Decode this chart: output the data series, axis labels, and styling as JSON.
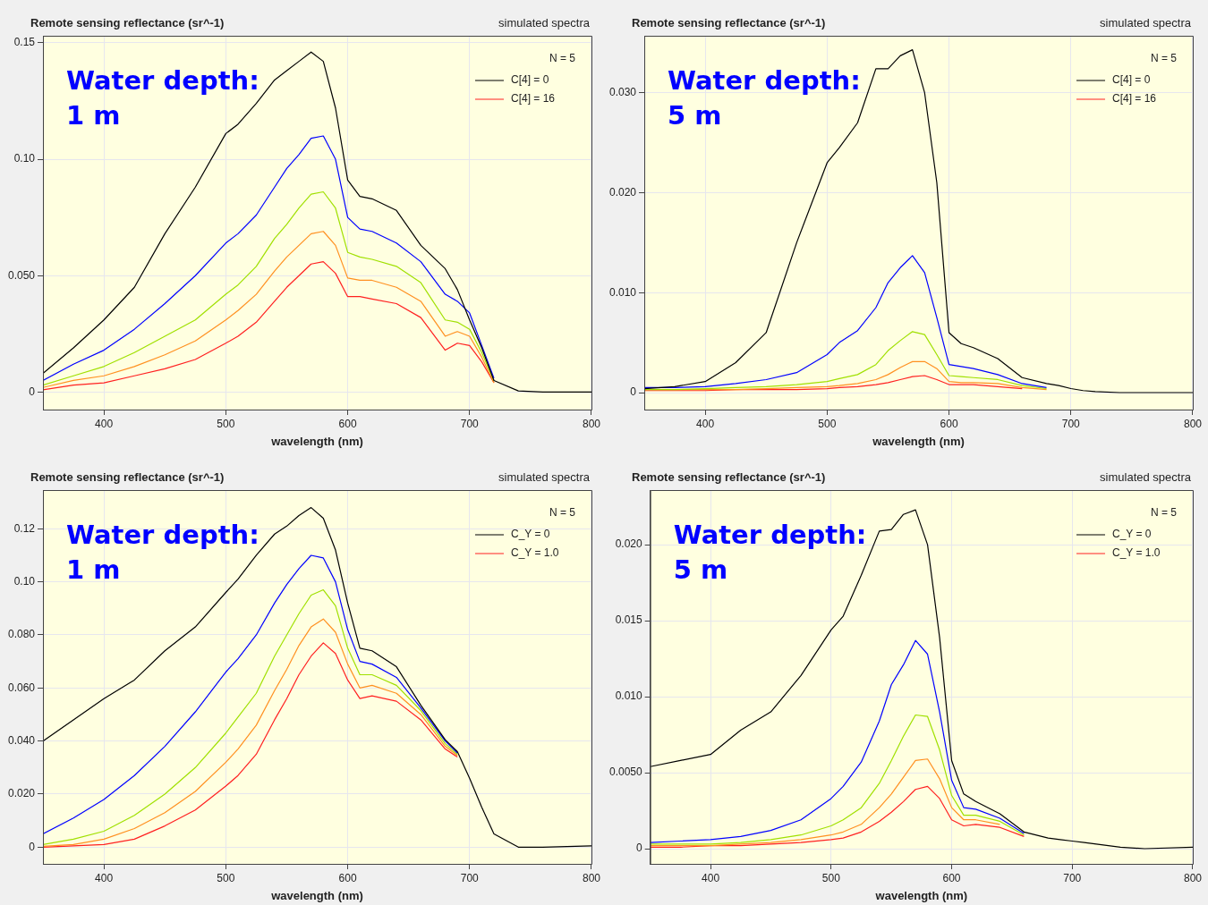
{
  "chart_data": [
    {
      "type": "line",
      "title": "Remote sensing reflectance (sr^-1)",
      "subtitle": "simulated spectra",
      "xlabel": "wavelength (nm)",
      "legend_title": "N = 5",
      "annotations": [
        "Water depth:",
        "1 m"
      ],
      "legend": "top right",
      "grid": true,
      "marker": "none",
      "line_style": "solid",
      "x": [
        350,
        375,
        400,
        425,
        450,
        475,
        500,
        510,
        525,
        540,
        550,
        560,
        570,
        580,
        590,
        600,
        610,
        620,
        640,
        660,
        680,
        690,
        700,
        710,
        720,
        740,
        760,
        800
      ],
      "xlim": [
        350,
        800
      ],
      "xticks": [
        400,
        500,
        600,
        700,
        800
      ],
      "ylim": [
        -0.0075,
        0.153
      ],
      "yticks": [
        0,
        {
          "value": 0.05,
          "label": "0.050"
        },
        {
          "value": 0.1,
          "label": "0.10"
        },
        0.15
      ],
      "series": [
        {
          "name": "C[4] = 0",
          "color": "#000000",
          "values": [
            0.008,
            0.019,
            0.031,
            0.045,
            0.068,
            0.088,
            0.111,
            0.115,
            0.124,
            0.134,
            0.138,
            0.142,
            0.146,
            0.142,
            0.122,
            0.091,
            0.084,
            0.083,
            0.078,
            0.063,
            0.053,
            0.044,
            0.031,
            0.019,
            0.005,
            0.0005,
            0,
            0
          ]
        },
        {
          "color": "#0000ff",
          "values": [
            0.005,
            0.012,
            0.018,
            0.027,
            0.038,
            0.05,
            0.064,
            0.068,
            0.076,
            0.088,
            0.096,
            0.102,
            0.109,
            0.11,
            0.1,
            0.075,
            0.07,
            0.069,
            0.064,
            0.056,
            0.042,
            0.039,
            0.034,
            0.02,
            0.006,
            null,
            null,
            null
          ]
        },
        {
          "color": "#a0e000",
          "values": [
            0.003,
            0.007,
            0.011,
            0.017,
            0.024,
            0.031,
            0.042,
            0.046,
            0.054,
            0.066,
            0.072,
            0.079,
            0.085,
            0.086,
            0.079,
            0.06,
            0.058,
            0.057,
            0.054,
            0.047,
            0.031,
            0.03,
            0.027,
            0.017,
            0.005,
            null,
            null,
            null
          ]
        },
        {
          "color": "#ff9020",
          "values": [
            0.002,
            0.005,
            0.007,
            0.011,
            0.016,
            0.022,
            0.031,
            0.035,
            0.042,
            0.052,
            0.058,
            0.063,
            0.068,
            0.069,
            0.063,
            0.049,
            0.048,
            0.048,
            0.045,
            0.039,
            0.024,
            0.026,
            0.024,
            0.015,
            0.004,
            null,
            null,
            null
          ]
        },
        {
          "name": "C[4] = 16",
          "color": "#ff2020",
          "values": [
            0.001,
            0.003,
            0.004,
            0.007,
            0.01,
            0.014,
            0.021,
            0.024,
            0.03,
            0.039,
            0.045,
            0.05,
            0.055,
            0.056,
            0.051,
            0.041,
            0.041,
            0.04,
            0.038,
            0.032,
            0.018,
            0.021,
            0.02,
            0.013,
            0.004,
            null,
            null,
            null
          ]
        }
      ]
    },
    {
      "type": "line",
      "title": "Remote sensing reflectance (sr^-1)",
      "subtitle": "simulated spectra",
      "xlabel": "wavelength (nm)",
      "legend_title": "N = 5",
      "annotations": [
        "Water depth:",
        "5 m"
      ],
      "legend": "top right",
      "grid": true,
      "marker": "none",
      "line_style": "solid",
      "x": [
        350,
        375,
        400,
        425,
        450,
        475,
        500,
        510,
        525,
        540,
        550,
        560,
        570,
        580,
        590,
        600,
        610,
        620,
        640,
        660,
        680,
        690,
        700,
        710,
        720,
        740,
        760,
        800
      ],
      "xlim": [
        350,
        800
      ],
      "xticks": [
        400,
        500,
        600,
        700,
        800
      ],
      "ylim": [
        -0.0017,
        0.0357
      ],
      "yticks": [
        0,
        {
          "value": 0.01,
          "label": "0.010"
        },
        {
          "value": 0.02,
          "label": "0.020"
        },
        {
          "value": 0.03,
          "label": "0.030"
        }
      ],
      "series": [
        {
          "name": "C[4] = 0",
          "color": "#000000",
          "values": [
            0.0004,
            0.0006,
            0.0011,
            0.003,
            0.006,
            0.015,
            0.023,
            0.0245,
            0.027,
            0.0324,
            0.0324,
            0.0337,
            0.0343,
            0.03,
            0.021,
            0.006,
            0.0049,
            0.0045,
            0.0034,
            0.0015,
            0.0009,
            0.0007,
            0.0004,
            0.0002,
            0.0001,
            0,
            0,
            0
          ]
        },
        {
          "color": "#0000ff",
          "values": [
            0.0005,
            0.0005,
            0.0006,
            0.0009,
            0.0013,
            0.002,
            0.0038,
            0.005,
            0.0062,
            0.0085,
            0.011,
            0.0125,
            0.0137,
            0.012,
            0.0075,
            0.0028,
            0.0026,
            0.0024,
            0.0018,
            0.0009,
            0.0005,
            null,
            null,
            null,
            null,
            null,
            null,
            null
          ]
        },
        {
          "color": "#a0e000",
          "values": [
            0.0003,
            0.0003,
            0.0004,
            0.0005,
            0.0006,
            0.0008,
            0.0011,
            0.0014,
            0.0018,
            0.0028,
            0.0042,
            0.0052,
            0.0061,
            0.0058,
            0.0038,
            0.0017,
            0.0016,
            0.0015,
            0.0013,
            0.0007,
            0.0004,
            null,
            null,
            null,
            null,
            null,
            null,
            null
          ]
        },
        {
          "color": "#ff9020",
          "values": [
            0.0003,
            0.0003,
            0.0003,
            0.0003,
            0.0004,
            0.0005,
            0.0006,
            0.0007,
            0.0009,
            0.0013,
            0.0018,
            0.0025,
            0.0031,
            0.0031,
            0.0024,
            0.0011,
            0.001,
            0.001,
            0.0009,
            0.0005,
            0.0003,
            null,
            null,
            null,
            null,
            null,
            null,
            null
          ]
        },
        {
          "name": "C[4] = 16",
          "color": "#ff2020",
          "values": [
            0.0002,
            0.0002,
            0.0002,
            0.0003,
            0.0003,
            0.0003,
            0.0004,
            0.0005,
            0.0006,
            0.0008,
            0.001,
            0.0013,
            0.0016,
            0.0017,
            0.0013,
            0.0008,
            0.0008,
            0.0008,
            0.0006,
            0.0004,
            null,
            null,
            null,
            null,
            null,
            null,
            null,
            null
          ]
        }
      ]
    },
    {
      "type": "line",
      "title": "Remote sensing reflectance (sr^-1)",
      "subtitle": "simulated spectra",
      "xlabel": "wavelength (nm)",
      "legend_title": "N = 5",
      "annotations": [
        "Water depth:",
        "1 m"
      ],
      "legend": "top right",
      "grid": true,
      "marker": "none",
      "line_style": "solid",
      "x": [
        350,
        375,
        400,
        425,
        450,
        475,
        500,
        510,
        525,
        540,
        550,
        560,
        570,
        580,
        590,
        600,
        610,
        620,
        640,
        660,
        680,
        690,
        700,
        710,
        720,
        740,
        760,
        800
      ],
      "xlim": [
        350,
        800
      ],
      "xticks": [
        400,
        500,
        600,
        700,
        800
      ],
      "ylim": [
        -0.0063,
        0.1346
      ],
      "yticks": [
        0,
        {
          "value": 0.02,
          "label": "0.020"
        },
        {
          "value": 0.04,
          "label": "0.040"
        },
        {
          "value": 0.06,
          "label": "0.060"
        },
        {
          "value": 0.08,
          "label": "0.080"
        },
        {
          "value": 0.1,
          "label": "0.10"
        },
        0.12
      ],
      "series": [
        {
          "name": "C_Y = 0",
          "color": "#000000",
          "values": [
            0.04,
            0.048,
            0.056,
            0.063,
            0.074,
            0.083,
            0.096,
            0.101,
            0.11,
            0.118,
            0.121,
            0.125,
            0.128,
            0.124,
            0.112,
            0.092,
            0.075,
            0.074,
            0.068,
            0.0535,
            0.0405,
            0.036,
            0.026,
            0.015,
            0.005,
            0,
            0,
            0.0005
          ]
        },
        {
          "color": "#0000ff",
          "values": [
            0.005,
            0.011,
            0.018,
            0.027,
            0.038,
            0.051,
            0.066,
            0.071,
            0.08,
            0.092,
            0.099,
            0.105,
            0.11,
            0.109,
            0.1,
            0.082,
            0.07,
            0.069,
            0.064,
            0.0525,
            0.04,
            0.0355,
            null,
            null,
            null,
            null,
            null,
            null
          ]
        },
        {
          "color": "#a0e000",
          "values": [
            0.001,
            0.003,
            0.006,
            0.012,
            0.02,
            0.03,
            0.043,
            0.049,
            0.058,
            0.072,
            0.08,
            0.088,
            0.095,
            0.097,
            0.091,
            0.075,
            0.065,
            0.065,
            0.061,
            0.0515,
            0.039,
            0.035,
            null,
            null,
            null,
            null,
            null,
            null
          ]
        },
        {
          "color": "#ff9020",
          "values": [
            0.0003,
            0.001,
            0.003,
            0.007,
            0.013,
            0.021,
            0.032,
            0.037,
            0.046,
            0.059,
            0.067,
            0.076,
            0.083,
            0.086,
            0.081,
            0.069,
            0.06,
            0.061,
            0.058,
            0.05,
            0.038,
            0.0345,
            null,
            null,
            null,
            null,
            null,
            null
          ]
        },
        {
          "name": "C_Y = 1.0",
          "color": "#ff2020",
          "values": [
            0,
            0.0005,
            0.001,
            0.003,
            0.008,
            0.014,
            0.023,
            0.027,
            0.035,
            0.048,
            0.056,
            0.065,
            0.072,
            0.077,
            0.073,
            0.063,
            0.056,
            0.057,
            0.055,
            0.048,
            0.037,
            0.034,
            null,
            null,
            null,
            null,
            null,
            null
          ]
        }
      ]
    },
    {
      "type": "line",
      "title": "Remote sensing reflectance (sr^-1)",
      "subtitle": "simulated spectra",
      "xlabel": "wavelength (nm)",
      "legend_title": "N = 5",
      "annotations": [
        "Water depth:",
        "5 m"
      ],
      "legend": "top right",
      "grid": true,
      "marker": "none",
      "line_style": "solid",
      "x": [
        350,
        375,
        400,
        425,
        450,
        475,
        500,
        510,
        525,
        540,
        550,
        560,
        570,
        580,
        590,
        600,
        610,
        620,
        640,
        660,
        680,
        690,
        700,
        710,
        720,
        740,
        760,
        800
      ],
      "xlim": [
        350,
        800
      ],
      "xticks": [
        400,
        500,
        600,
        700,
        800
      ],
      "ylim": [
        -0.001,
        0.0236
      ],
      "yticks": [
        0,
        {
          "value": 0.005,
          "label": "0.0050"
        },
        {
          "value": 0.01,
          "label": "0.010"
        },
        {
          "value": 0.015,
          "label": "0.015"
        },
        {
          "value": 0.02,
          "label": "0.020"
        }
      ],
      "series": [
        {
          "name": "C_Y = 0",
          "color": "#000000",
          "values": [
            0.0054,
            0.0058,
            0.0062,
            0.0078,
            0.009,
            0.0114,
            0.0144,
            0.0153,
            0.018,
            0.0209,
            0.021,
            0.022,
            0.0223,
            0.02,
            0.0139,
            0.0058,
            0.0036,
            0.0031,
            0.0023,
            0.0011,
            0.0007,
            0.0006,
            0.0005,
            0.0004,
            0.0003,
            0.0001,
            0,
            0.0001
          ]
        },
        {
          "color": "#0000ff",
          "values": [
            0.0004,
            0.0005,
            0.0006,
            0.0008,
            0.0012,
            0.0019,
            0.0033,
            0.0041,
            0.0057,
            0.0084,
            0.0108,
            0.0121,
            0.0137,
            0.0128,
            0.009,
            0.0045,
            0.0027,
            0.0026,
            0.002,
            0.001,
            null,
            null,
            null,
            null,
            null,
            null,
            null,
            null
          ]
        },
        {
          "color": "#a0e000",
          "values": [
            0.0003,
            0.0003,
            0.0003,
            0.0004,
            0.0006,
            0.0009,
            0.0015,
            0.0019,
            0.0027,
            0.0043,
            0.0058,
            0.0074,
            0.0088,
            0.0087,
            0.0065,
            0.0035,
            0.0022,
            0.0022,
            0.0018,
            0.0009,
            null,
            null,
            null,
            null,
            null,
            null,
            null,
            null
          ]
        },
        {
          "color": "#ff9020",
          "values": [
            0.0002,
            0.0002,
            0.0002,
            0.0003,
            0.0004,
            0.0006,
            0.0009,
            0.0011,
            0.0016,
            0.0027,
            0.0036,
            0.0047,
            0.0058,
            0.0059,
            0.0046,
            0.0027,
            0.0019,
            0.0019,
            0.0016,
            null,
            null,
            null,
            null,
            null,
            null,
            null,
            null,
            null
          ]
        },
        {
          "name": "C_Y = 1.0",
          "color": "#ff2020",
          "values": [
            0.0001,
            0.0001,
            0.0002,
            0.0002,
            0.0003,
            0.0004,
            0.0006,
            0.0007,
            0.0011,
            0.0018,
            0.0024,
            0.0031,
            0.0039,
            0.0041,
            0.0033,
            0.0019,
            0.0015,
            0.0016,
            0.0014,
            0.0008,
            null,
            null,
            null,
            null,
            null,
            null,
            null,
            null
          ]
        }
      ]
    }
  ]
}
